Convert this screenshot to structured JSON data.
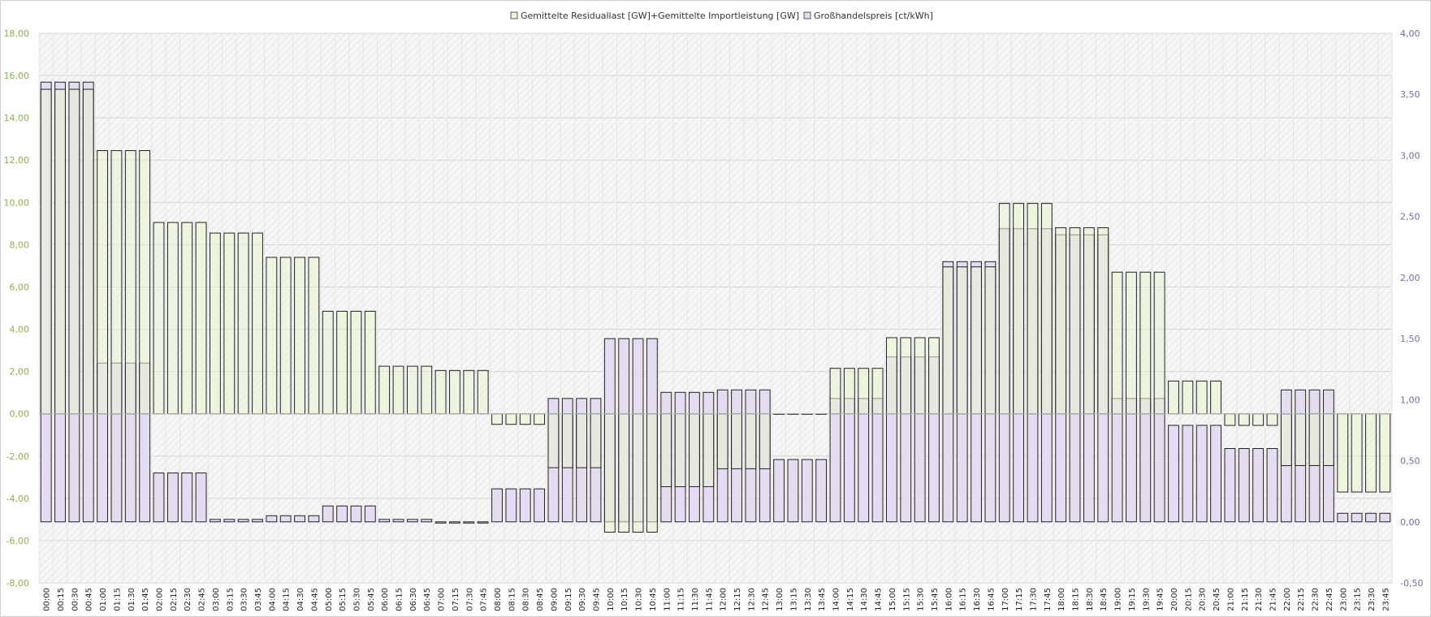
{
  "chart_data": {
    "type": "bar",
    "legend": {
      "placement": "top-center",
      "entries": [
        {
          "label": "Gemittelte Residuallast [GW]+Gemittelte Importleistung [GW]",
          "color": "#e8f5d0"
        },
        {
          "label": "Großhandelspreis [ct/kWh]",
          "color": "#e4dcf0"
        }
      ]
    },
    "y_left": {
      "min": -8,
      "max": 18,
      "ticks": [
        18,
        16,
        14,
        12,
        10,
        8,
        6,
        4,
        2,
        0,
        -2,
        -4,
        -6,
        -8
      ],
      "tick_labels": [
        "18,00",
        "16,00",
        "14,00",
        "12,00",
        "10,00",
        "8,00",
        "6,00",
        "4,00",
        "2,00",
        "0,00",
        "-2,00",
        "-4,00",
        "-6,00",
        "-8,00"
      ],
      "color": "#88b04b"
    },
    "y_right": {
      "min": -0.5,
      "max": 4,
      "ticks": [
        4,
        3.5,
        3,
        2.5,
        2,
        1.5,
        1,
        0.5,
        0,
        -0.5
      ],
      "tick_labels": [
        "4,00",
        "3,50",
        "3,00",
        "2,50",
        "2,00",
        "1,50",
        "1,00",
        "0,50",
        "0,00",
        "-0,50"
      ],
      "color": "#7a68a6"
    },
    "grid": true,
    "categories": [
      "00:00",
      "00:15",
      "00:30",
      "00:45",
      "01:00",
      "01:15",
      "01:30",
      "01:45",
      "02:00",
      "02:15",
      "02:30",
      "02:45",
      "03:00",
      "03:15",
      "03:30",
      "03:45",
      "04:00",
      "04:15",
      "04:30",
      "04:45",
      "05:00",
      "05:15",
      "05:30",
      "05:45",
      "06:00",
      "06:15",
      "06:30",
      "06:45",
      "07:00",
      "07:15",
      "07:30",
      "07:45",
      "08:00",
      "08:15",
      "08:30",
      "08:45",
      "09:00",
      "09:15",
      "09:30",
      "09:45",
      "10:00",
      "10:15",
      "10:30",
      "10:45",
      "11:00",
      "11:15",
      "11:30",
      "11:45",
      "12:00",
      "12:15",
      "12:30",
      "12:45",
      "13:00",
      "13:15",
      "13:30",
      "13:45",
      "14:00",
      "14:15",
      "14:30",
      "14:45",
      "15:00",
      "15:15",
      "15:30",
      "15:45",
      "16:00",
      "16:15",
      "16:30",
      "16:45",
      "17:00",
      "17:15",
      "17:30",
      "17:45",
      "18:00",
      "18:15",
      "18:30",
      "18:45",
      "19:00",
      "19:15",
      "19:30",
      "19:45",
      "20:00",
      "20:15",
      "20:30",
      "20:45",
      "21:00",
      "21:15",
      "21:30",
      "21:45",
      "22:00",
      "22:15",
      "22:30",
      "22:45",
      "23:00",
      "23:15",
      "23:30",
      "23:45"
    ],
    "series": [
      {
        "name": "Gemittelte Residuallast [GW]+Gemittelte Importleistung [GW]",
        "axis": "left",
        "color": "#e8f5d0",
        "values": [
          15.35,
          15.35,
          15.35,
          15.35,
          12.45,
          12.45,
          12.45,
          12.45,
          9.05,
          9.05,
          9.05,
          9.05,
          8.55,
          8.55,
          8.55,
          8.55,
          7.4,
          7.4,
          7.4,
          7.4,
          4.85,
          4.85,
          4.85,
          4.85,
          2.25,
          2.25,
          2.25,
          2.25,
          2.05,
          2.05,
          2.05,
          2.05,
          -0.5,
          -0.5,
          -0.5,
          -0.5,
          -2.55,
          -2.55,
          -2.55,
          -2.55,
          -5.6,
          -5.6,
          -5.6,
          -5.6,
          -3.45,
          -3.45,
          -3.45,
          -3.45,
          -2.6,
          -2.6,
          -2.6,
          -2.6,
          0,
          0,
          0,
          0,
          2.15,
          2.15,
          2.15,
          2.15,
          3.6,
          3.6,
          3.6,
          3.6,
          6.95,
          6.95,
          6.95,
          6.95,
          9.95,
          9.95,
          9.95,
          9.95,
          8.8,
          8.8,
          8.8,
          8.8,
          6.7,
          6.7,
          6.7,
          6.7,
          1.55,
          1.55,
          1.55,
          1.55,
          -0.55,
          -0.55,
          -0.55,
          -0.55,
          -2.45,
          -2.45,
          -2.45,
          -2.45,
          -3.7,
          -3.7,
          -3.7,
          -3.7
        ]
      },
      {
        "name": "Großhandelspreis [ct/kWh]",
        "axis": "right",
        "color": "#e4dcf0",
        "values": [
          3.6,
          3.6,
          3.6,
          3.6,
          1.3,
          1.3,
          1.3,
          1.3,
          0.4,
          0.4,
          0.4,
          0.4,
          0.02,
          0.02,
          0.02,
          0.02,
          0.05,
          0.05,
          0.05,
          0.05,
          0.13,
          0.13,
          0.13,
          0.13,
          0.02,
          0.02,
          0.02,
          0.02,
          -0.01,
          -0.01,
          -0.01,
          -0.01,
          0.27,
          0.27,
          0.27,
          0.27,
          1.01,
          1.01,
          1.01,
          1.01,
          1.5,
          1.5,
          1.5,
          1.5,
          1.06,
          1.06,
          1.06,
          1.06,
          1.08,
          1.08,
          1.08,
          1.08,
          0.51,
          0.51,
          0.51,
          0.51,
          1.01,
          1.01,
          1.01,
          1.01,
          1.35,
          1.35,
          1.35,
          1.35,
          2.13,
          2.13,
          2.13,
          2.13,
          2.4,
          2.4,
          2.4,
          2.4,
          2.35,
          2.35,
          2.35,
          2.35,
          1.01,
          1.01,
          1.01,
          1.01,
          0.79,
          0.79,
          0.79,
          0.79,
          0.6,
          0.6,
          0.6,
          0.6,
          1.08,
          1.08,
          1.08,
          1.08,
          0.07,
          0.07,
          0.07,
          0.07
        ]
      }
    ]
  }
}
